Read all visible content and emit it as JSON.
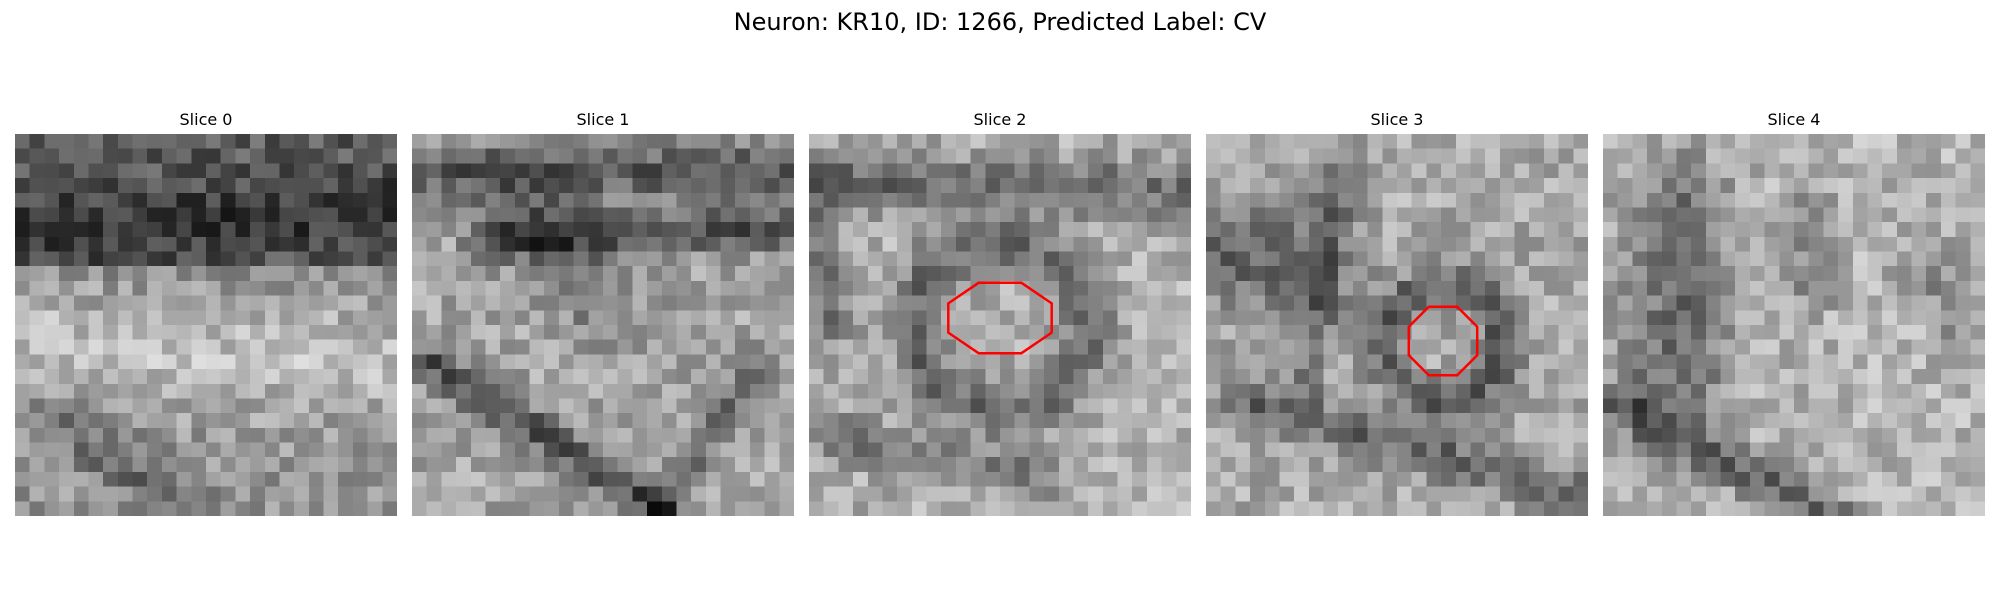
{
  "figure": {
    "title": "Neuron: KR10, ID: 1266, Predicted Label: CV"
  },
  "panels": [
    {
      "title": "Slice 0",
      "has_roi": false
    },
    {
      "title": "Slice 1",
      "has_roi": false
    },
    {
      "title": "Slice 2",
      "has_roi": true
    },
    {
      "title": "Slice 3",
      "has_roi": true
    },
    {
      "title": "Slice 4",
      "has_roi": false
    }
  ],
  "image": {
    "colormap": "grayscale",
    "roi_color": "#ff0000"
  }
}
